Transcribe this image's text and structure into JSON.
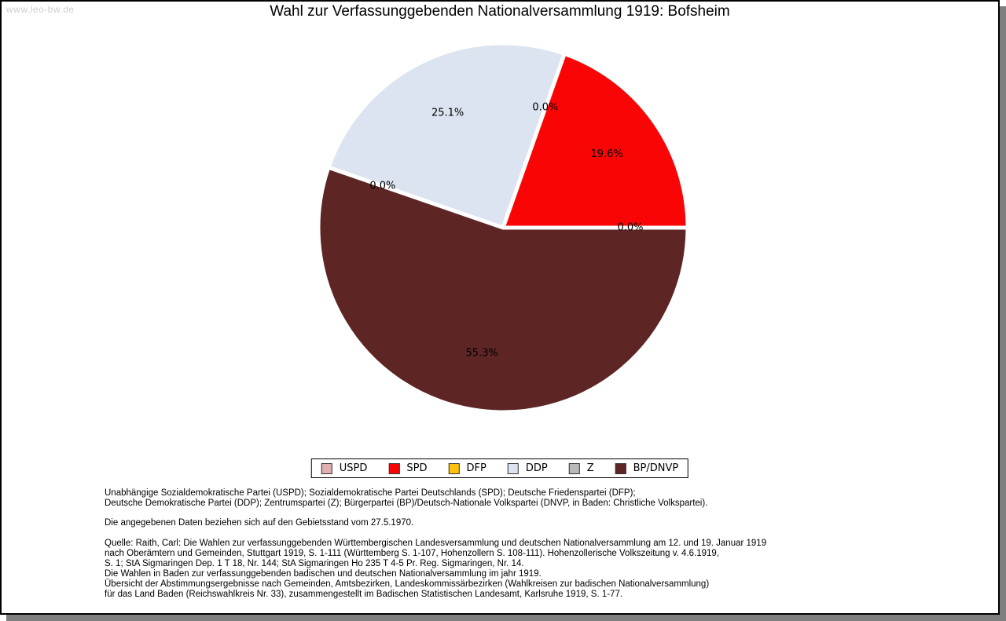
{
  "watermark": "www.leo-bw.de",
  "title": "Wahl zur Verfassunggebenden Nationalversammlung 1919: Bofsheim",
  "chart_data": {
    "type": "pie",
    "title": "Wahl zur Verfassunggebenden Nationalversammlung 1919: Bofsheim",
    "start_angle_deg": 0,
    "direction": "counterclockwise",
    "legend_position": "bottom",
    "label_format": "percent",
    "slices": [
      {
        "label": "USPD",
        "value": 0.0,
        "display": "0.0%",
        "color": "#dfafb1"
      },
      {
        "label": "SPD",
        "value": 19.6,
        "display": "19.6%",
        "color": "#fa0505"
      },
      {
        "label": "DFP",
        "value": 0.0,
        "display": "0.0%",
        "color": "#fec20a"
      },
      {
        "label": "DDP",
        "value": 25.1,
        "display": "25.1%",
        "color": "#dbe4f0"
      },
      {
        "label": "Z",
        "value": 0.0,
        "display": "0.0%",
        "color": "#b9b9b9"
      },
      {
        "label": "BP/DNVP",
        "value": 55.3,
        "display": "55.3%",
        "color": "#5e2525"
      }
    ]
  },
  "notes": {
    "parties": [
      "Unabhängige Sozialdemokratische Partei (USPD); Sozialdemokratische Partei Deutschlands (SPD); Deutsche Friedenspartei (DFP);",
      "Deutsche Demokratische Partei (DDP); Zentrumspartei (Z); Bürgerpartei (BP)/Deutsch-Nationale Volkspartei (DNVP, in Baden: Christliche Volkspartei)."
    ],
    "gebietsstand": "Die angegebenen Daten beziehen sich auf den Gebietsstand vom 27.5.1970.",
    "quelle": [
      "Quelle: Raith, Carl: Die Wahlen zur verfassunggebenden Württembergischen Landesversammlung und deutschen Nationalversammlung am 12. und 19. Januar 1919",
      "nach Oberämtern und Gemeinden, Stuttgart 1919, S. 1-111 (Württemberg S. 1-107, Hohenzollern S. 108-111). Hohenzollerische Volkszeitung v. 4.6.1919,",
      "S. 1; StA Sigmaringen Dep. 1 T 18, Nr. 144; StA Sigmaringen Ho 235 T 4-5 Pr. Reg. Sigmaringen, Nr. 14.",
      "Die Wahlen in Baden zur verfassunggebenden badischen und deutschen Nationalversammlung im jahr 1919.",
      "Übersicht der Abstimmungsergebnisse nach Gemeinden, Amtsbezirken, Landeskommissärbezirken (Wahlkreisen zur badischen Nationalversammlung)",
      "für das Land Baden (Reichswahlkreis Nr. 33), zusammengestellt im Badischen Statistischen Landesamt, Karlsruhe 1919, S. 1-77."
    ]
  }
}
